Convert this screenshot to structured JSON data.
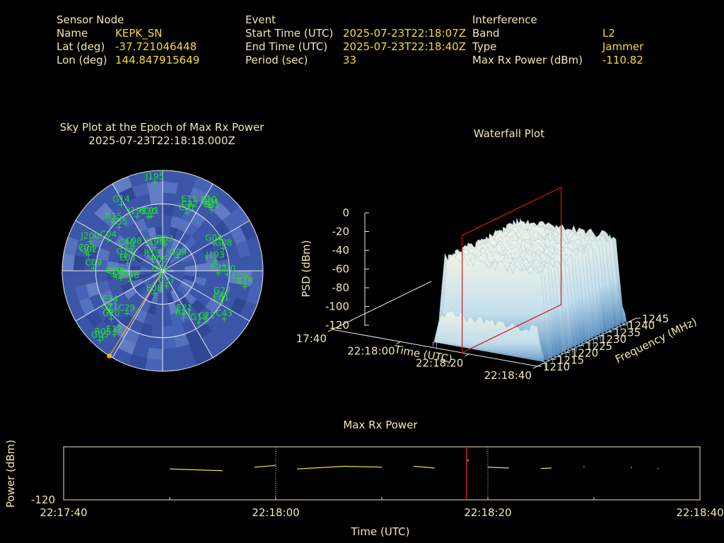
{
  "colors": {
    "label": "#f0e6b4",
    "value": "#f2dc3a",
    "sat": "#22e02a",
    "marker": "#d8d0a8",
    "jam": "#ffb020",
    "sky": "#3b55a8",
    "cursor": "#d01818"
  },
  "info": {
    "sensor": {
      "heading": "Sensor Node",
      "name_label": "Name",
      "name": "KEPK_SN",
      "lat_label": "Lat (deg)",
      "lat": "-37.721046448",
      "lon_label": "Lon (deg)",
      "lon": "144.847915649"
    },
    "event": {
      "heading": "Event",
      "start_label": "Start Time (UTC)",
      "start": "2025-07-23T22:18:07Z",
      "end_label": "End Time (UTC)",
      "end": "2025-07-23T22:18:40Z",
      "period_label": "Period (sec)",
      "period": "33"
    },
    "interference": {
      "heading": "Interference",
      "band_label": "Band",
      "band": "L2",
      "type_label": "Type",
      "type": "Jammer",
      "power_label": "Max Rx Power (dBm)",
      "power": "-110.82"
    }
  },
  "chart_data": [
    {
      "type": "scatter",
      "subtype": "polar-sky-plot",
      "title": "Sky Plot at the Epoch of Max Rx Power",
      "subtitle": "2025-07-23T22:18:18.000Z",
      "grid": true,
      "satellites": [
        {
          "id": "J195",
          "az": -5,
          "el": 10
        },
        {
          "id": "E10",
          "az": 35,
          "el": 18
        },
        {
          "id": "E31",
          "az": 39,
          "el": 20
        },
        {
          "id": "R04",
          "az": 37,
          "el": 19
        },
        {
          "id": "E11",
          "az": 22,
          "el": 26
        },
        {
          "id": "C32",
          "az": 24,
          "el": 30
        },
        {
          "id": "C21",
          "az": 23,
          "el": 34
        },
        {
          "id": "G14",
          "az": -32,
          "el": 20
        },
        {
          "id": "R15",
          "az": -45,
          "el": 28
        },
        {
          "id": "J199",
          "az": -25,
          "el": 36
        },
        {
          "id": "C30",
          "az": -15,
          "el": 40
        },
        {
          "id": "C01",
          "az": -12,
          "el": 40
        },
        {
          "id": "C35",
          "az": -45,
          "el": 35
        },
        {
          "id": "C04",
          "az": -60,
          "el": 34
        },
        {
          "id": "J200",
          "az": -68,
          "el": 20
        },
        {
          "id": "C03",
          "az": -77,
          "el": 20
        },
        {
          "id": "G02",
          "az": -78,
          "el": 22
        },
        {
          "id": "C09",
          "az": -88,
          "el": 28
        },
        {
          "id": "C40",
          "az": -58,
          "el": 52
        },
        {
          "id": "C08",
          "az": -50,
          "el": 56
        },
        {
          "id": "G19",
          "az": -70,
          "el": 54
        },
        {
          "id": "J196",
          "az": -18,
          "el": 68
        },
        {
          "id": "R03",
          "az": 5,
          "el": 66
        },
        {
          "id": "R13",
          "az": -42,
          "el": 76
        },
        {
          "id": "E05",
          "az": -30,
          "el": 84
        },
        {
          "id": "E03",
          "az": -78,
          "el": 58
        },
        {
          "id": "C38",
          "az": -98,
          "el": 48
        },
        {
          "id": "C39",
          "az": -96,
          "el": 46
        },
        {
          "id": "C45",
          "az": -100,
          "el": 52
        },
        {
          "id": "C46",
          "az": -108,
          "el": 60
        },
        {
          "id": "G03",
          "az": -150,
          "el": 86
        },
        {
          "id": "E08",
          "az": -160,
          "el": 68
        },
        {
          "id": "C37",
          "az": 165,
          "el": 76
        },
        {
          "id": "G09",
          "az": 50,
          "el": 72
        },
        {
          "id": "G04",
          "az": 62,
          "el": 38
        },
        {
          "id": "G08",
          "az": 70,
          "el": 32
        },
        {
          "id": "J193",
          "az": 79,
          "el": 42
        },
        {
          "id": "E23",
          "az": 92,
          "el": 40
        },
        {
          "id": "C20",
          "az": 93,
          "el": 32
        },
        {
          "id": "E09",
          "az": 98,
          "el": 20
        },
        {
          "id": "C19",
          "az": 101,
          "el": 15
        },
        {
          "id": "G27",
          "az": 113,
          "el": 32
        },
        {
          "id": "E01",
          "az": 119,
          "el": 30
        },
        {
          "id": "C43",
          "az": 128,
          "el": 20
        },
        {
          "id": "C23",
          "az": 139,
          "el": 30
        },
        {
          "id": "G18",
          "az": 145,
          "el": 33
        },
        {
          "id": "E21",
          "az": 153,
          "el": 47
        },
        {
          "id": "R21",
          "az": 156,
          "el": 44
        },
        {
          "id": "E34",
          "az": -123,
          "el": 34
        },
        {
          "id": "C21b",
          "label": "C21",
          "az": -128,
          "el": 30
        },
        {
          "id": "G20",
          "az": -133,
          "el": 27
        },
        {
          "id": "C29",
          "az": -140,
          "el": 40
        },
        {
          "id": "E12",
          "az": -143,
          "el": 18
        },
        {
          "id": "R05",
          "az": -138,
          "el": 10
        },
        {
          "id": "G05",
          "az": -138,
          "el": 6
        }
      ],
      "jammer": {
        "az": -148,
        "el": 0
      }
    },
    {
      "type": "area",
      "subtype": "3d-waterfall",
      "title": "Waterfall Plot",
      "xlabel": "Time (UTC)",
      "ylabel": "Frequency (MHz)",
      "zlabel": "PSD (dBm)",
      "x_ticks": [
        "22:17:40",
        "22:18:00",
        "22:18:20",
        "22:18:40"
      ],
      "y_ticks": [
        "1210",
        "1215",
        "1220",
        "1225",
        "1230",
        "1235",
        "1240",
        "1245"
      ],
      "z_ticks": [
        "0",
        "-20",
        "-40",
        "-60",
        "-80",
        "-100",
        "-120"
      ],
      "xlim": [
        "22:17:40",
        "22:18:40"
      ],
      "ylim": [
        1210,
        1245
      ],
      "zlim": [
        -120,
        0
      ],
      "surface": {
        "time_start": "22:18:07",
        "time_end": "22:18:40",
        "freq_start": 1213,
        "freq_end": 1242,
        "psd_plateau": -28
      },
      "cursor_time": "22:18:18"
    },
    {
      "type": "line",
      "title": "Max Rx Power",
      "xlabel": "Time (UTC)",
      "ylabel": "Power (dBm)",
      "x_ticks": [
        "22:17:40",
        "22:18:00",
        "22:18:20",
        "22:18:40"
      ],
      "y_ticks": [
        "-120"
      ],
      "xlim": [
        0,
        60
      ],
      "cursor_sec": 38,
      "segments": [
        [
          [
            10,
            -113
          ],
          [
            15,
            -113.4
          ]
        ],
        [
          [
            18,
            -112.6
          ],
          [
            20,
            -112.2
          ]
        ],
        [
          [
            22,
            -113
          ],
          [
            26.5,
            -112.4
          ]
        ],
        [
          [
            26.5,
            -112.4
          ],
          [
            30,
            -112.6
          ]
        ],
        [
          [
            33,
            -112.4
          ],
          [
            35,
            -112.8
          ]
        ],
        [
          [
            38,
            -110.82
          ],
          [
            38.2,
            -111.2
          ]
        ],
        [
          [
            40,
            -112.6
          ],
          [
            42,
            -112.8
          ]
        ],
        [
          [
            45,
            -112.9
          ],
          [
            46,
            -112.8
          ]
        ],
        [
          [
            49,
            -112.5
          ],
          [
            49.1,
            -112.5
          ]
        ],
        [
          [
            53.5,
            -112.7
          ],
          [
            53.6,
            -112.7
          ]
        ],
        [
          [
            56,
            -112.9
          ],
          [
            56.1,
            -112.9
          ]
        ]
      ]
    }
  ]
}
